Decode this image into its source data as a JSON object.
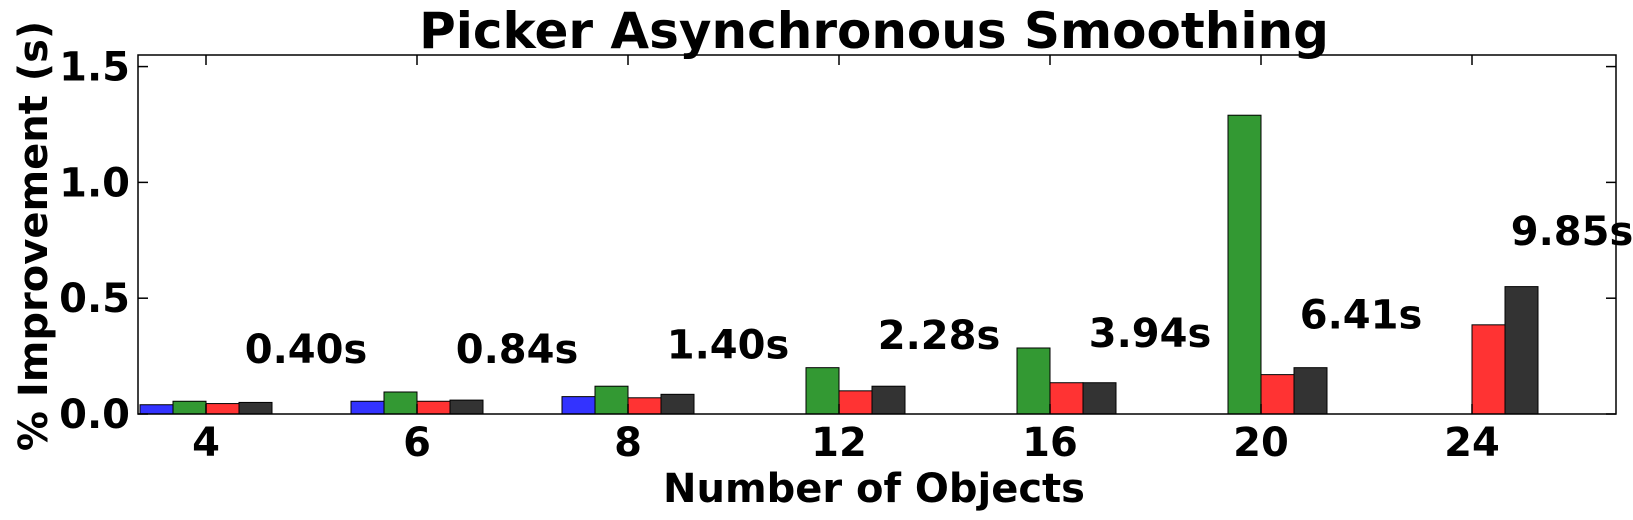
{
  "chart_data": {
    "type": "bar",
    "title": "Picker Asynchronous Smoothing",
    "xlabel": "Number of Objects",
    "ylabel": "% Improvement (s)",
    "ylim": [
      0,
      1.55
    ],
    "yticks": [
      "0.0",
      "0.5",
      "1.0",
      "1.5"
    ],
    "ytick_values": [
      0,
      0.5,
      1.0,
      1.5
    ],
    "categories": [
      "4",
      "6",
      "8",
      "12",
      "16",
      "20",
      "24"
    ],
    "legend": "none",
    "grid": false,
    "series": [
      {
        "color": "#3333ff",
        "values": [
          0.04,
          0.055,
          0.075,
          null,
          null,
          null,
          null
        ]
      },
      {
        "color": "#339933",
        "values": [
          0.055,
          0.095,
          0.12,
          0.2,
          0.285,
          1.29,
          null
        ]
      },
      {
        "color": "#ff3333",
        "values": [
          0.045,
          0.055,
          0.07,
          0.1,
          0.135,
          0.17,
          0.385
        ]
      },
      {
        "color": "#333333",
        "values": [
          0.05,
          0.06,
          0.085,
          0.12,
          0.135,
          0.2,
          0.55
        ]
      }
    ],
    "annotations": [
      {
        "category": "4",
        "text": "0.40s",
        "y": 0.22
      },
      {
        "category": "6",
        "text": "0.84s",
        "y": 0.22
      },
      {
        "category": "8",
        "text": "1.40s",
        "y": 0.24
      },
      {
        "category": "12",
        "text": "2.28s",
        "y": 0.28
      },
      {
        "category": "16",
        "text": "3.94s",
        "y": 0.29
      },
      {
        "category": "20",
        "text": "6.41s",
        "y": 0.37
      },
      {
        "category": "24",
        "text": "9.85s",
        "y": 0.73
      }
    ]
  }
}
